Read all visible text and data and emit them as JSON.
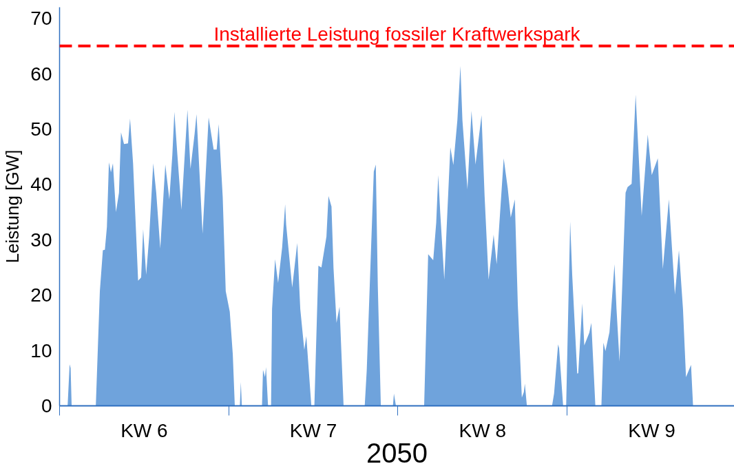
{
  "chart_data": {
    "type": "area",
    "xlabel": "2050",
    "ylabel": "Leistung [GW]",
    "x": [
      "2050-02-07T08:00",
      "2050-02-07T10:00",
      "2050-02-07T11:00",
      "2050-02-07T12:00",
      "2050-02-08T12:00",
      "2050-02-08T16:00",
      "2050-02-08T19:00",
      "2050-02-08T21:00",
      "2050-02-08T23:00",
      "2050-02-09T01:00",
      "2050-02-09T03:00",
      "2050-02-09T05:00",
      "2050-02-09T08:00",
      "2050-02-09T11:00",
      "2050-02-09T13:00",
      "2050-02-09T16:00",
      "2050-02-09T20:00",
      "2050-02-09T22:00",
      "2050-02-10T01:00",
      "2050-02-10T06:00",
      "2050-02-10T09:00",
      "2050-02-10T11:00",
      "2050-02-10T14:00",
      "2050-02-10T17:00",
      "2050-02-10T21:00",
      "2050-02-11T00:00",
      "2050-02-11T04:00",
      "2050-02-11T09:00",
      "2050-02-11T13:00",
      "2050-02-11T16:00",
      "2050-02-11T18:00",
      "2050-02-11T21:00",
      "2050-02-12T01:00",
      "2050-02-12T07:00",
      "2050-02-12T10:00",
      "2050-02-12T14:00",
      "2050-02-12T16:00",
      "2050-02-12T22:00",
      "2050-02-13T04:00",
      "2050-02-13T09:00",
      "2050-02-13T12:00",
      "2050-02-13T14:00",
      "2050-02-13T18:00",
      "2050-02-13T21:00",
      "2050-02-14T01:00",
      "2050-02-14T04:00",
      "2050-02-14T06:00",
      "2050-02-14T11:00",
      "2050-02-14T12:00",
      "2050-02-14T13:00",
      "2050-02-15T09:00",
      "2050-02-15T10:00",
      "2050-02-15T12:00",
      "2050-02-15T13:00",
      "2050-02-15T15:00",
      "2050-02-15T18:00",
      "2050-02-15T19:00",
      "2050-02-15T22:00",
      "2050-02-16T01:00",
      "2050-02-16T05:00",
      "2050-02-16T08:00",
      "2050-02-16T09:00",
      "2050-02-16T15:00",
      "2050-02-16T20:00",
      "2050-02-16T23:00",
      "2050-02-17T03:00",
      "2050-02-17T05:00",
      "2050-02-17T10:00",
      "2050-02-17T13:00",
      "2050-02-17T17:00",
      "2050-02-17T20:00",
      "2050-02-18T01:00",
      "2050-02-18T03:00",
      "2050-02-18T06:00",
      "2050-02-18T08:00",
      "2050-02-18T11:00",
      "2050-02-18T14:00",
      "2050-02-18T18:00",
      "2050-02-19T15:00",
      "2050-02-19T17:00",
      "2050-02-19T21:00",
      "2050-02-20T00:00",
      "2050-02-20T02:00",
      "2050-02-20T04:00",
      "2050-02-20T07:00",
      "2050-02-20T19:00",
      "2050-02-20T20:00",
      "2050-02-20T22:00",
      "2050-02-22T02:00",
      "2050-02-22T06:00",
      "2050-02-22T11:00",
      "2050-02-22T14:00",
      "2050-02-22T16:00",
      "2050-02-22T18:00",
      "2050-02-22T22:00",
      "2050-02-23T04:00",
      "2050-02-23T07:00",
      "2050-02-23T11:00",
      "2050-02-23T14:00",
      "2050-02-23T16:00",
      "2050-02-23T21:00",
      "2050-02-24T01:00",
      "2050-02-24T05:00",
      "2050-02-24T11:00",
      "2050-02-24T14:00",
      "2050-02-24T18:00",
      "2050-02-24T23:00",
      "2050-02-25T02:00",
      "2050-02-25T09:00",
      "2050-02-25T13:00",
      "2050-02-25T16:00",
      "2050-02-25T20:00",
      "2050-02-25T23:00",
      "2050-02-26T03:00",
      "2050-02-26T05:00",
      "2050-02-26T06:00",
      "2050-02-26T08:00",
      "2050-02-27T09:00",
      "2050-02-27T11:00",
      "2050-02-27T15:00",
      "2050-02-27T16:00",
      "2050-02-27T20:00",
      "2050-02-27T23:00",
      "2050-02-28T03:00",
      "2050-02-28T05:00",
      "2050-02-28T10:00",
      "2050-02-28T11:00",
      "2050-02-28T15:00",
      "2050-02-28T17:00",
      "2050-02-28T22:00",
      "2050-03-01T00:00",
      "2050-03-01T04:00",
      "2050-03-01T10:00",
      "2050-03-01T12:00",
      "2050-03-01T14:00",
      "2050-03-01T18:00",
      "2050-03-01T23:00",
      "2050-03-02T01:00",
      "2050-03-02T04:00",
      "2050-03-02T10:00",
      "2050-03-02T12:00",
      "2050-03-02T16:00",
      "2050-03-02T20:00",
      "2050-03-03T02:00",
      "2050-03-03T08:00",
      "2050-03-03T12:00",
      "2050-03-03T18:00",
      "2050-03-03T23:00",
      "2050-03-04T05:00",
      "2050-03-04T11:00",
      "2050-03-04T15:00",
      "2050-03-04T19:00",
      "2050-03-04T22:00",
      "2050-03-05T03:00",
      "2050-03-05T05:00"
    ],
    "series": [
      {
        "color": "#6fa3dc",
        "values": [
          0,
          7.5,
          6.8,
          0,
          0,
          20.7,
          28.1,
          28.2,
          32.3,
          44,
          42.2,
          43.8,
          35,
          38.5,
          49.4,
          47.3,
          47.4,
          51.9,
          43.8,
          22.6,
          23.2,
          31.9,
          23.7,
          30.6,
          43.8,
          38.5,
          28.4,
          43.6,
          37.3,
          45.4,
          53.1,
          45.3,
          35.4,
          53.5,
          42.8,
          49,
          52.7,
          31.1,
          52.1,
          46.3,
          46.3,
          50.9,
          37.7,
          20.7,
          17,
          9.3,
          0,
          0,
          4.3,
          0,
          0,
          6.5,
          5.2,
          7,
          0,
          0,
          17.5,
          26.5,
          22.2,
          28.6,
          36.4,
          32.7,
          21.4,
          29.4,
          17.5,
          10.1,
          12.6,
          0,
          0,
          25.3,
          25,
          30.6,
          37.9,
          36,
          24.9,
          15,
          17.9,
          0,
          0,
          6.4,
          26.9,
          42.3,
          43.6,
          21.6,
          0,
          0,
          2.2,
          0,
          0,
          27.4,
          26.3,
          33.1,
          41.7,
          34.8,
          22.8,
          46.7,
          43.5,
          51.6,
          61.4,
          51.6,
          39.1,
          53.3,
          43.6,
          52.5,
          38,
          22.8,
          30.9,
          25.6,
          44.7,
          39.3,
          34,
          37.3,
          18.3,
          1.5,
          2.5,
          4,
          0,
          0,
          2.2,
          11.1,
          10.4,
          0,
          0,
          33.3,
          23.7,
          5.8,
          5.9,
          18.5,
          10.9,
          13.2,
          15,
          0,
          0,
          11.4,
          9.9,
          13.3,
          25.6,
          17.5,
          8,
          38.5,
          39.5,
          40.1,
          56.2,
          34.3,
          49,
          41.7,
          44.7,
          24.7,
          37.3,
          20.1,
          28.1,
          17.5,
          5.2,
          7.4,
          0
        ]
      }
    ],
    "xlim": [
      "2050-02-07",
      "2050-03-06T22:00"
    ],
    "xticks": [
      {
        "value": "2050-02-07",
        "label": null
      },
      {
        "value": "2050-02-10T12:00",
        "label": "KW 6"
      },
      {
        "value": "2050-02-14",
        "label": null
      },
      {
        "value": "2050-02-17T12:00",
        "label": "KW 7"
      },
      {
        "value": "2050-02-21",
        "label": null
      },
      {
        "value": "2050-02-24T12:00",
        "label": "KW 8"
      },
      {
        "value": "2050-02-28",
        "label": null
      },
      {
        "value": "2050-03-03T12:00",
        "label": "KW 9"
      }
    ],
    "ylim": [
      0,
      72
    ],
    "yticks": [
      0,
      10,
      20,
      30,
      40,
      50,
      60,
      70
    ],
    "ref_lines": [
      {
        "axis": "y",
        "value": 65,
        "label": "Installierte Leistung fossiler Kraftwerkspark",
        "color": "#ff0000",
        "line_style": "dashed"
      }
    ],
    "grid": false
  }
}
